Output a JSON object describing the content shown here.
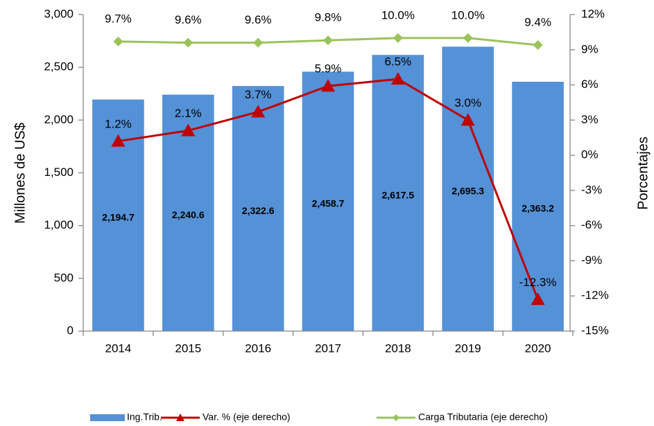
{
  "chart_data": {
    "type": "bar",
    "ylabel": "Millones de US$",
    "y2label": "Porcentajes",
    "categories": [
      "2014",
      "2015",
      "2016",
      "2017",
      "2018",
      "2019",
      "2020"
    ],
    "series": [
      {
        "name": "Ing.Trib.",
        "type": "bar",
        "color": "#5591d7",
        "values": [
          2194.7,
          2240.6,
          2322.6,
          2458.7,
          2617.5,
          2695.3,
          2363.2
        ],
        "value_labels": [
          "2,194.7",
          "2,240.6",
          "2,322.6",
          "2,458.7",
          "2,617.5",
          "2,695.3",
          "2,363.2"
        ]
      },
      {
        "name": "Var. % (eje derecho)",
        "type": "line",
        "marker": "triangle",
        "axis": "y2",
        "color": "#c00000",
        "values": [
          1.2,
          2.1,
          3.7,
          5.9,
          6.5,
          3.0,
          -12.3
        ],
        "value_labels": [
          "1.2%",
          "2.1%",
          "3.7%",
          "5.9%",
          "6.5%",
          "3.0%",
          "-12.3%"
        ]
      },
      {
        "name": "Carga Tributaria (eje derecho)",
        "type": "line",
        "marker": "diamond",
        "axis": "y2",
        "color": "#9bc35a",
        "values": [
          9.7,
          9.6,
          9.6,
          9.8,
          10.0,
          10.0,
          9.4
        ],
        "value_labels": [
          "9.7%",
          "9.6%",
          "9.6%",
          "9.8%",
          "10.0%",
          "10.0%",
          "9.4%"
        ]
      }
    ],
    "ylim": [
      0,
      3000
    ],
    "yticks": [
      0,
      500,
      {
        "value": 1000,
        "label": "1,000"
      },
      {
        "value": 1500,
        "label": "1,500"
      },
      {
        "value": 2000,
        "label": "2,000"
      },
      {
        "value": 2500,
        "label": "2,500"
      },
      {
        "value": 3000,
        "label": "3,000"
      }
    ],
    "y2lim": [
      -15,
      12
    ],
    "y2ticks": [
      {
        "value": -15,
        "label": "-15%"
      },
      {
        "value": -12,
        "label": "-12%"
      },
      {
        "value": -9,
        "label": "-9%"
      },
      {
        "value": -6,
        "label": "-6%"
      },
      {
        "value": -3,
        "label": "-3%"
      },
      {
        "value": 0,
        "label": "0%"
      },
      {
        "value": 3,
        "label": "3%"
      },
      {
        "value": 6,
        "label": "6%"
      },
      {
        "value": 9,
        "label": "9%"
      },
      {
        "value": 12,
        "label": "12%"
      }
    ],
    "grid": false,
    "legend": "bottom"
  }
}
